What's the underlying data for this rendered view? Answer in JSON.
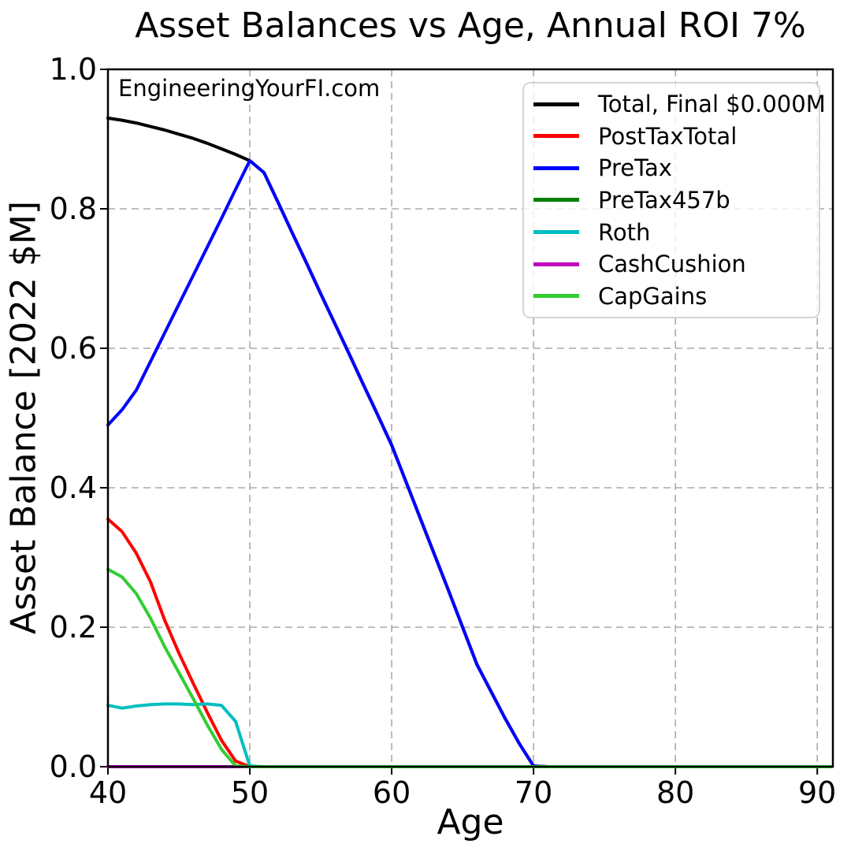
{
  "chart_data": {
    "type": "line",
    "title": "Asset Balances vs Age, Annual ROI 7%",
    "watermark": "EngineeringYourFI.com",
    "xlabel": "Age",
    "ylabel": "Asset Balance [2022 $M]",
    "xlim": [
      40,
      91.1
    ],
    "ylim": [
      0,
      1.0
    ],
    "xticks": [
      40,
      50,
      60,
      70,
      80,
      90
    ],
    "yticks": [
      0.0,
      0.2,
      0.4,
      0.6,
      0.8,
      1.0
    ],
    "grid": true,
    "grid_style": "dashed",
    "legend_position": "upper right",
    "x": [
      40,
      41,
      42,
      43,
      44,
      45,
      46,
      47,
      48,
      49,
      50,
      51,
      52,
      53,
      54,
      55,
      56,
      57,
      58,
      59,
      60,
      61,
      62,
      63,
      64,
      65,
      66,
      67,
      68,
      69,
      70,
      71,
      72,
      73,
      74,
      75,
      76,
      77,
      78,
      79,
      80,
      81,
      82,
      83,
      84,
      85,
      86,
      87,
      88,
      89,
      90,
      91
    ],
    "series": [
      {
        "name": "Total, Final $0.000M",
        "color": "#000000",
        "values": [
          0.93,
          0.927,
          0.923,
          0.918,
          0.913,
          0.907,
          0.901,
          0.894,
          0.886,
          0.878,
          0.869,
          0.852,
          0.809,
          0.765,
          0.722,
          0.678,
          0.635,
          0.592,
          0.548,
          0.505,
          0.461,
          0.409,
          0.357,
          0.305,
          0.253,
          0.2,
          0.147,
          0.108,
          0.069,
          0.033,
          0.001,
          0,
          0,
          0,
          0,
          0,
          0,
          0,
          0,
          0,
          0,
          0,
          0,
          0,
          0,
          0,
          0,
          0,
          0,
          0,
          0,
          0
        ]
      },
      {
        "name": "PostTaxTotal",
        "color": "#ff0000",
        "values": [
          0.355,
          0.337,
          0.306,
          0.265,
          0.21,
          0.163,
          0.12,
          0.078,
          0.038,
          0.008,
          0,
          0,
          0,
          0,
          0,
          0,
          0,
          0,
          0,
          0,
          0,
          0,
          0,
          0,
          0,
          0,
          0,
          0,
          0,
          0,
          0,
          0,
          0,
          0,
          0,
          0,
          0,
          0,
          0,
          0,
          0,
          0,
          0,
          0,
          0,
          0,
          0,
          0,
          0,
          0,
          0,
          0
        ]
      },
      {
        "name": "PreTax",
        "color": "#0000ff",
        "values": [
          0.49,
          0.512,
          0.54,
          0.581,
          0.622,
          0.663,
          0.704,
          0.745,
          0.786,
          0.828,
          0.869,
          0.852,
          0.809,
          0.765,
          0.722,
          0.678,
          0.635,
          0.592,
          0.548,
          0.505,
          0.461,
          0.409,
          0.357,
          0.305,
          0.253,
          0.2,
          0.147,
          0.108,
          0.069,
          0.033,
          0.001,
          0,
          0,
          0,
          0,
          0,
          0,
          0,
          0,
          0,
          0,
          0,
          0,
          0,
          0,
          0,
          0,
          0,
          0,
          0,
          0,
          0
        ]
      },
      {
        "name": "PreTax457b",
        "color": "#008000",
        "values": [
          0,
          0,
          0,
          0,
          0,
          0,
          0,
          0,
          0,
          0,
          0,
          0,
          0,
          0,
          0,
          0,
          0,
          0,
          0,
          0,
          0,
          0,
          0,
          0,
          0,
          0,
          0,
          0,
          0,
          0,
          0,
          0,
          0,
          0,
          0,
          0,
          0,
          0,
          0,
          0,
          0,
          0,
          0,
          0,
          0,
          0,
          0,
          0,
          0,
          0,
          0,
          0
        ]
      },
      {
        "name": "Roth",
        "color": "#00bfbf",
        "values": [
          0.088,
          0.084,
          0.087,
          0.089,
          0.09,
          0.09,
          0.089,
          0.09,
          0.088,
          0.065,
          0.001,
          0,
          0,
          0,
          0,
          0,
          0,
          0,
          0,
          0,
          0,
          0,
          0,
          0,
          0,
          0,
          0,
          0,
          0,
          0,
          0,
          0,
          0,
          0,
          0,
          0,
          0,
          0,
          0,
          0,
          0,
          0,
          0,
          0,
          0,
          0,
          0,
          0,
          0,
          0,
          0,
          0
        ]
      },
      {
        "name": "CashCushion",
        "color": "#bf00bf",
        "values": [
          0,
          0,
          0,
          0,
          0,
          0,
          0,
          0,
          0,
          0,
          0,
          0,
          0,
          0,
          0,
          0,
          0,
          0,
          0,
          0,
          0,
          0,
          0,
          0,
          0,
          0,
          0,
          0,
          0,
          0,
          0,
          0,
          0,
          0,
          0,
          0,
          0,
          0,
          0,
          0,
          0,
          0,
          0,
          0,
          0,
          0,
          0,
          0,
          0,
          0,
          0,
          0
        ]
      },
      {
        "name": "CapGains",
        "color": "#32cd32",
        "values": [
          0.283,
          0.272,
          0.248,
          0.213,
          0.172,
          0.135,
          0.098,
          0.06,
          0.025,
          0.001,
          0,
          0,
          0,
          0,
          0,
          0,
          0,
          0,
          0,
          0,
          0,
          0,
          0,
          0,
          0,
          0,
          0,
          0,
          0,
          0,
          0,
          0,
          0,
          0,
          0,
          0,
          0,
          0,
          0,
          0,
          0,
          0,
          0,
          0,
          0,
          0,
          0,
          0,
          0,
          0,
          0,
          0
        ]
      }
    ]
  }
}
